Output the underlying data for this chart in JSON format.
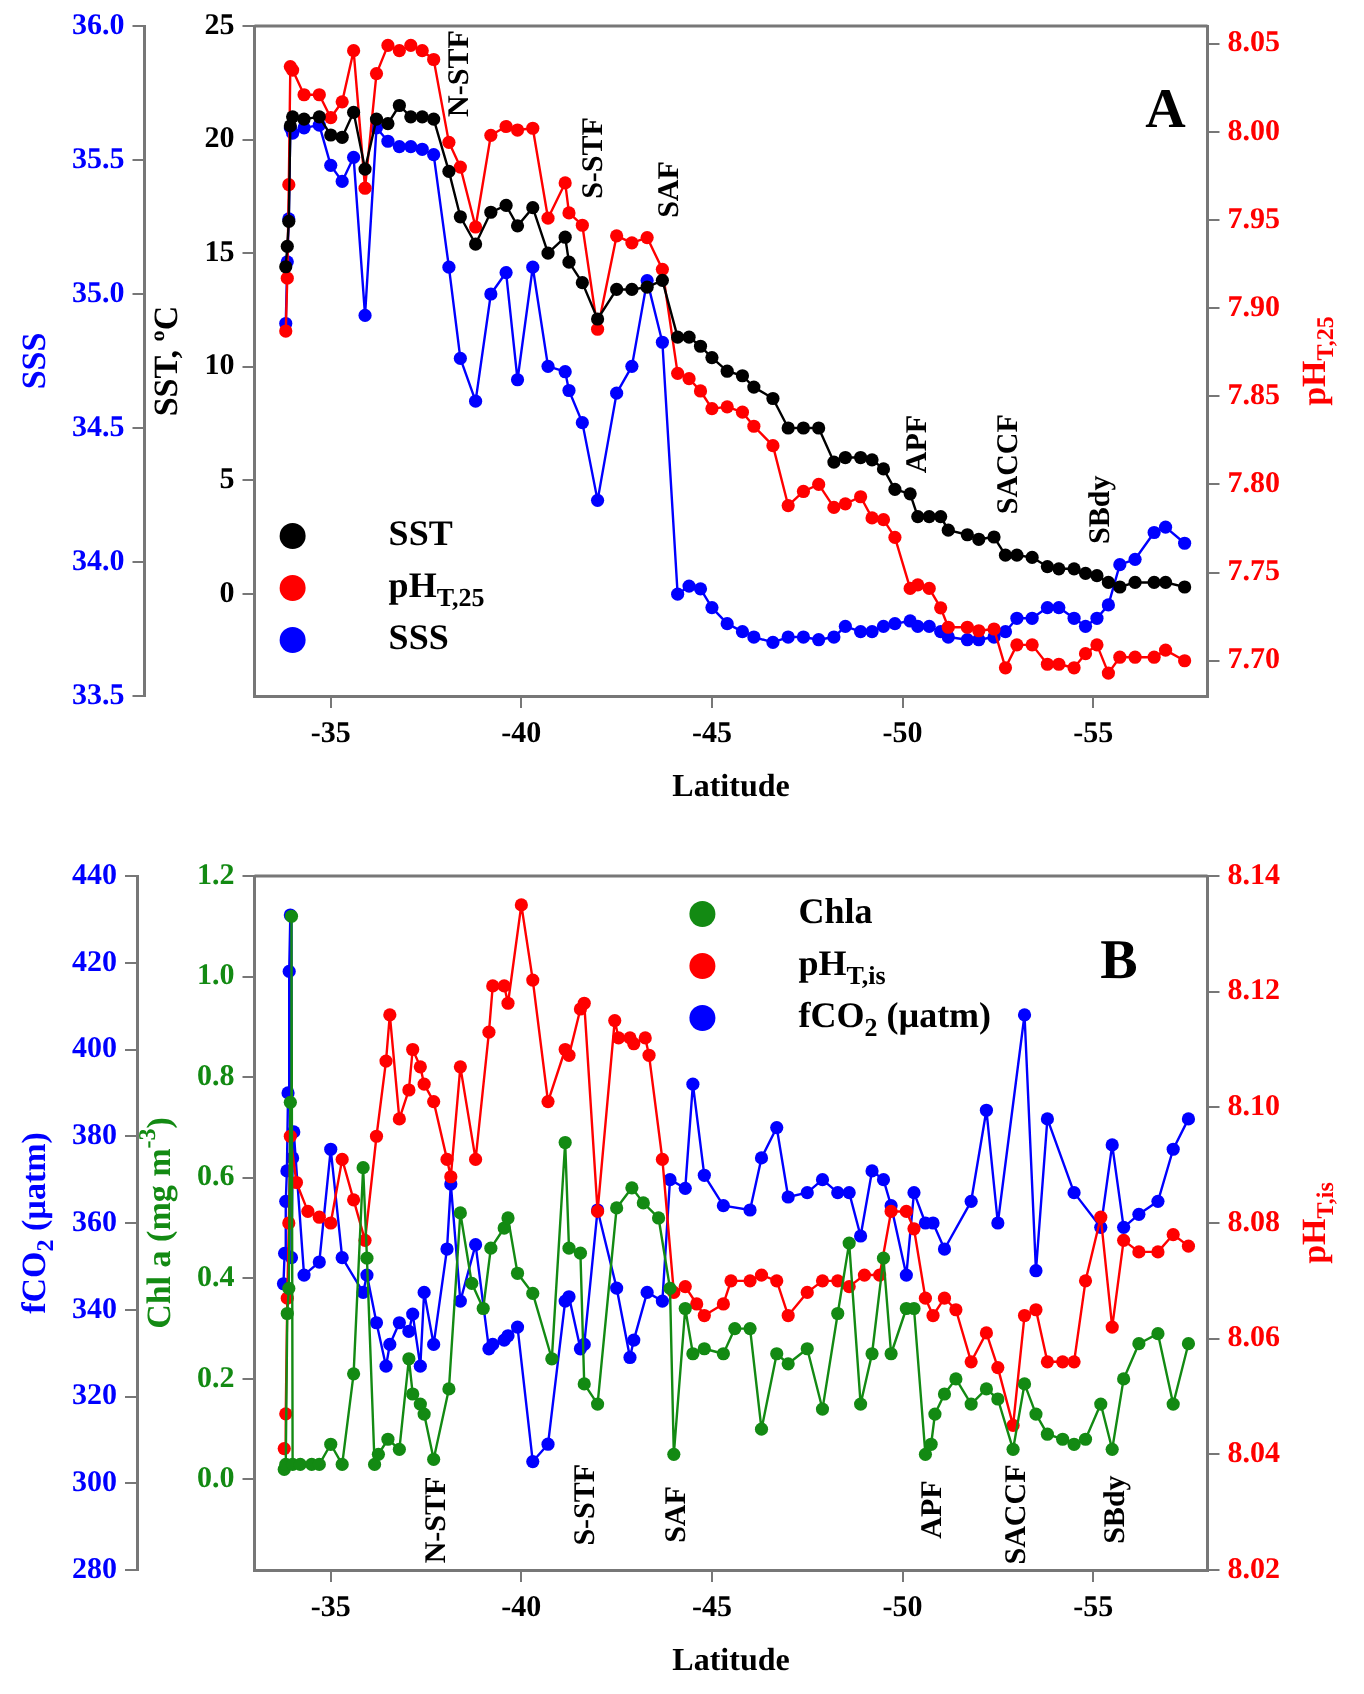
{
  "chart_data": [
    {
      "type": "line",
      "xlabel": "Latitude",
      "ylabel": "SST, ºC",
      "y2label": "pH$_{T,25}$",
      "y3label": "SSS",
      "xlim": [
        -33,
        -58
      ],
      "xticks": [
        -35,
        -40,
        -45,
        -50,
        -55
      ],
      "ylim": [
        -4.5,
        25
      ],
      "yticks": [
        0,
        5,
        10,
        15,
        20,
        25
      ],
      "y2lim": [
        7.68,
        8.06
      ],
      "y2ticks": [
        {
          "value": 7.7,
          "label": "7.70"
        },
        {
          "value": 7.75,
          "label": "7.75"
        },
        {
          "value": 7.8,
          "label": "7.80"
        },
        {
          "value": 7.85,
          "label": "7.85"
        },
        {
          "value": 7.9,
          "label": "7.90"
        },
        {
          "value": 7.95,
          "label": "7.95"
        },
        {
          "value": 8.0,
          "label": "8.00"
        },
        {
          "value": 8.05,
          "label": "8.05"
        }
      ],
      "y3lim": [
        33.5,
        36.0
      ],
      "y3ticks": [
        {
          "value": 33.5,
          "label": "33.5"
        },
        {
          "value": 34.0,
          "label": "34.0"
        },
        {
          "value": 34.5,
          "label": "34.5"
        },
        {
          "value": 35.0,
          "label": "35.0"
        },
        {
          "value": 35.5,
          "label": "35.5"
        },
        {
          "value": 36.0,
          "label": "36.0"
        }
      ],
      "marker": "circle",
      "legend": "bottom left",
      "annotations": [
        "A",
        "N-STF",
        "S-STF",
        "SAF",
        "APF",
        "SACCF",
        "SBdy"
      ],
      "series": [
        {
          "name": "SST",
          "color": "#000000",
          "x": [
            -33.82,
            -33.86,
            -33.9,
            -33.94,
            -34.0,
            -34.3,
            -34.7,
            -35.0,
            -35.3,
            -35.6,
            -35.9,
            -36.2,
            -36.5,
            -36.8,
            -37.1,
            -37.4,
            -37.7,
            -38.1,
            -38.4,
            -38.8,
            -39.2,
            -39.6,
            -39.9,
            -40.3,
            -40.7,
            -41.15,
            -41.25,
            -41.6,
            -42.0,
            -42.5,
            -42.9,
            -43.3,
            -43.7,
            -44.1,
            -44.4,
            -44.7,
            -45.0,
            -45.4,
            -45.8,
            -46.1,
            -46.6,
            -47.0,
            -47.4,
            -47.8,
            -48.2,
            -48.5,
            -48.9,
            -49.2,
            -49.5,
            -49.8,
            -50.2,
            -50.4,
            -50.7,
            -51.0,
            -51.2,
            -51.7,
            -52.0,
            -52.4,
            -52.7,
            -53.0,
            -53.4,
            -53.8,
            -54.1,
            -54.5,
            -54.8,
            -55.1,
            -55.4,
            -55.7,
            -56.1,
            -56.6,
            -56.9,
            -57.4
          ],
          "values": [
            14.4,
            15.3,
            16.4,
            20.6,
            21.0,
            20.9,
            21.0,
            20.2,
            20.1,
            21.2,
            18.7,
            20.9,
            20.7,
            21.5,
            21.0,
            21.0,
            20.9,
            18.6,
            16.6,
            15.4,
            16.8,
            17.1,
            16.2,
            17.0,
            15.0,
            15.7,
            14.6,
            13.7,
            12.1,
            13.4,
            13.4,
            13.5,
            13.8,
            11.3,
            11.3,
            10.9,
            10.4,
            9.8,
            9.6,
            9.1,
            8.6,
            7.3,
            7.3,
            7.3,
            5.8,
            6.0,
            6.0,
            5.9,
            5.5,
            4.6,
            4.4,
            3.4,
            3.4,
            3.4,
            2.8,
            2.6,
            2.4,
            2.5,
            1.7,
            1.7,
            1.6,
            1.2,
            1.1,
            1.1,
            0.9,
            0.8,
            0.5,
            0.3,
            0.5,
            0.5,
            0.5,
            0.3
          ]
        },
        {
          "name": "pH$_{T,25}$",
          "color": "#ff0000",
          "axis": "y2",
          "x": [
            -33.82,
            -33.86,
            -33.9,
            -33.94,
            -34.0,
            -34.3,
            -34.7,
            -35.0,
            -35.3,
            -35.6,
            -35.9,
            -36.2,
            -36.5,
            -36.8,
            -37.1,
            -37.4,
            -37.7,
            -38.1,
            -38.4,
            -38.8,
            -39.2,
            -39.6,
            -39.9,
            -40.3,
            -40.7,
            -41.15,
            -41.25,
            -41.6,
            -42.0,
            -42.5,
            -42.9,
            -43.3,
            -43.7,
            -44.1,
            -44.4,
            -44.7,
            -45.0,
            -45.4,
            -45.8,
            -46.1,
            -46.6,
            -47.0,
            -47.4,
            -47.8,
            -48.2,
            -48.5,
            -48.9,
            -49.2,
            -49.5,
            -49.8,
            -50.2,
            -50.4,
            -50.7,
            -51.0,
            -51.2,
            -51.7,
            -52.0,
            -52.4,
            -52.7,
            -53.0,
            -53.4,
            -53.8,
            -54.1,
            -54.5,
            -54.8,
            -55.1,
            -55.4,
            -55.7,
            -56.1,
            -56.6,
            -56.9,
            -57.4
          ],
          "values": [
            7.887,
            7.917,
            7.97,
            8.037,
            8.035,
            8.021,
            8.021,
            8.008,
            8.017,
            8.046,
            7.968,
            8.033,
            8.049,
            8.046,
            8.049,
            8.046,
            8.041,
            7.994,
            7.98,
            7.946,
            7.998,
            8.003,
            8.001,
            8.002,
            7.951,
            7.971,
            7.954,
            7.947,
            7.888,
            7.941,
            7.937,
            7.94,
            7.922,
            7.863,
            7.86,
            7.853,
            7.843,
            7.844,
            7.841,
            7.833,
            7.822,
            7.788,
            7.796,
            7.8,
            7.787,
            7.789,
            7.793,
            7.781,
            7.78,
            7.77,
            7.741,
            7.743,
            7.741,
            7.73,
            7.719,
            7.719,
            7.717,
            7.718,
            7.696,
            7.709,
            7.709,
            7.698,
            7.698,
            7.696,
            7.704,
            7.709,
            7.693,
            7.702,
            7.702,
            7.702,
            7.706,
            7.7
          ]
        },
        {
          "name": "SSS",
          "color": "#0000ff",
          "axis": "y3",
          "x": [
            -33.82,
            -33.86,
            -33.9,
            -33.94,
            -34.0,
            -34.3,
            -34.7,
            -35.0,
            -35.3,
            -35.6,
            -35.9,
            -36.2,
            -36.5,
            -36.8,
            -37.1,
            -37.4,
            -37.7,
            -38.1,
            -38.4,
            -38.8,
            -39.2,
            -39.6,
            -39.9,
            -40.3,
            -40.7,
            -41.15,
            -41.25,
            -41.6,
            -42.0,
            -42.5,
            -42.9,
            -43.3,
            -43.7,
            -44.1,
            -44.4,
            -44.7,
            -45.0,
            -45.4,
            -45.8,
            -46.1,
            -46.6,
            -47.0,
            -47.4,
            -47.8,
            -48.2,
            -48.5,
            -48.9,
            -49.2,
            -49.5,
            -49.8,
            -50.2,
            -50.4,
            -50.7,
            -51.0,
            -51.2,
            -51.7,
            -52.0,
            -52.4,
            -52.7,
            -53.0,
            -53.4,
            -53.8,
            -54.1,
            -54.5,
            -54.8,
            -55.1,
            -55.4,
            -55.7,
            -56.1,
            -56.6,
            -56.9,
            -57.4
          ],
          "values": [
            34.89,
            35.12,
            35.28,
            35.62,
            35.6,
            35.62,
            35.63,
            35.48,
            35.42,
            35.51,
            34.92,
            35.62,
            35.57,
            35.55,
            35.55,
            35.54,
            35.52,
            35.1,
            34.76,
            34.6,
            35.0,
            35.08,
            34.68,
            35.1,
            34.73,
            34.71,
            34.64,
            34.52,
            34.23,
            34.63,
            34.73,
            35.05,
            34.82,
            33.88,
            33.91,
            33.9,
            33.83,
            33.77,
            33.74,
            33.72,
            33.7,
            33.72,
            33.72,
            33.71,
            33.72,
            33.76,
            33.74,
            33.74,
            33.76,
            33.77,
            33.78,
            33.76,
            33.76,
            33.74,
            33.72,
            33.71,
            33.71,
            33.72,
            33.74,
            33.79,
            33.79,
            33.83,
            33.83,
            33.79,
            33.76,
            33.79,
            33.84,
            33.99,
            34.01,
            34.11,
            34.13,
            34.07
          ]
        }
      ]
    },
    {
      "type": "line",
      "xlabel": "Latitude",
      "ylabel": "Chl a (mg m$^{-3}$)",
      "y2label": "pH$_{T,is}$",
      "y3label": "fCO$_{2}$ (µatm)",
      "xlim": [
        -33,
        -58
      ],
      "xticks": [
        -35,
        -40,
        -45,
        -50,
        -55
      ],
      "ylim": [
        -0.18,
        1.2
      ],
      "yticks": [
        {
          "value": 0,
          "label": "0.0"
        },
        {
          "value": 0.2,
          "label": "0.2"
        },
        {
          "value": 0.4,
          "label": "0.4"
        },
        {
          "value": 0.6,
          "label": "0.6"
        },
        {
          "value": 0.8,
          "label": "0.8"
        },
        {
          "value": 1,
          "label": "1.0"
        },
        {
          "value": 1.2,
          "label": "1.2"
        }
      ],
      "y2lim": [
        8.02,
        8.14
      ],
      "y2ticks": [
        {
          "value": 8.02,
          "label": "8.02"
        },
        {
          "value": 8.04,
          "label": "8.04"
        },
        {
          "value": 8.06,
          "label": "8.06"
        },
        {
          "value": 8.08,
          "label": "8.08"
        },
        {
          "value": 8.1,
          "label": "8.10"
        },
        {
          "value": 8.12,
          "label": "8.12"
        },
        {
          "value": 8.14,
          "label": "8.14"
        }
      ],
      "y3lim": [
        280,
        440
      ],
      "y3ticks": [
        280,
        300,
        320,
        340,
        360,
        380,
        400,
        420,
        440
      ],
      "marker": "circle",
      "legend": "top right",
      "annotations": [
        "B",
        "N-STF",
        "S-STF",
        "SAF",
        "APF",
        "SACCF",
        "SBdy"
      ],
      "series": [
        {
          "name": "Chla",
          "color": "#138a13",
          "x": [
            -33.78,
            -33.82,
            -33.86,
            -33.9,
            -33.94,
            -33.97,
            -34.0,
            -34.2,
            -34.5,
            -34.7,
            -35.0,
            -35.3,
            -35.6,
            -35.85,
            -35.95,
            -36.15,
            -36.25,
            -36.5,
            -36.8,
            -37.05,
            -37.15,
            -37.35,
            -37.45,
            -37.7,
            -38.1,
            -38.4,
            -38.7,
            -39.0,
            -39.2,
            -39.55,
            -39.65,
            -39.9,
            -40.3,
            -40.8,
            -41.15,
            -41.25,
            -41.55,
            -41.65,
            -42.0,
            -42.5,
            -42.9,
            -43.2,
            -43.6,
            -43.9,
            -44.0,
            -44.3,
            -44.5,
            -44.8,
            -45.3,
            -45.6,
            -46.0,
            -46.3,
            -46.7,
            -47.0,
            -47.5,
            -47.9,
            -48.3,
            -48.6,
            -48.9,
            -49.2,
            -49.5,
            -49.7,
            -50.1,
            -50.3,
            -50.6,
            -50.75,
            -50.85,
            -51.1,
            -51.4,
            -51.8,
            -52.2,
            -52.5,
            -52.9,
            -53.2,
            -53.5,
            -53.8,
            -54.2,
            -54.5,
            -54.8,
            -55.2,
            -55.5,
            -55.8,
            -56.2,
            -56.7,
            -57.1,
            -57.5
          ],
          "values": [
            0.02,
            0.03,
            0.33,
            0.38,
            0.75,
            1.12,
            0.03,
            0.03,
            0.03,
            0.03,
            0.07,
            0.03,
            0.21,
            0.62,
            0.44,
            0.03,
            0.05,
            0.08,
            0.06,
            0.24,
            0.17,
            0.15,
            0.13,
            0.04,
            0.18,
            0.53,
            0.39,
            0.34,
            0.46,
            0.5,
            0.52,
            0.41,
            0.37,
            0.24,
            0.67,
            0.46,
            0.45,
            0.19,
            0.15,
            0.54,
            0.58,
            0.55,
            0.52,
            0.38,
            0.05,
            0.34,
            0.25,
            0.26,
            0.25,
            0.3,
            0.3,
            0.1,
            0.25,
            0.23,
            0.26,
            0.14,
            0.33,
            0.47,
            0.15,
            0.25,
            0.44,
            0.25,
            0.34,
            0.34,
            0.05,
            0.07,
            0.13,
            0.17,
            0.2,
            0.15,
            0.18,
            0.16,
            0.06,
            0.19,
            0.13,
            0.09,
            0.08,
            0.07,
            0.08,
            0.15,
            0.06,
            0.2,
            0.27,
            0.29,
            0.15,
            0.27
          ]
        },
        {
          "name": "pH$_{T,is}$",
          "color": "#ff0000",
          "axis": "y2",
          "x": [
            -33.78,
            -33.82,
            -33.86,
            -33.9,
            -33.94,
            -34.1,
            -34.4,
            -34.7,
            -35.0,
            -35.3,
            -35.6,
            -35.9,
            -36.2,
            -36.45,
            -36.55,
            -36.8,
            -37.05,
            -37.15,
            -37.35,
            -37.45,
            -37.7,
            -38.05,
            -38.15,
            -38.4,
            -38.8,
            -39.15,
            -39.25,
            -39.55,
            -39.65,
            -40.0,
            -40.3,
            -40.7,
            -41.15,
            -41.25,
            -41.55,
            -41.65,
            -42.0,
            -42.45,
            -42.55,
            -42.85,
            -42.95,
            -43.25,
            -43.35,
            -43.7,
            -44.0,
            -44.3,
            -44.6,
            -44.8,
            -45.3,
            -45.5,
            -46.0,
            -46.3,
            -46.7,
            -47.0,
            -47.5,
            -47.9,
            -48.3,
            -48.6,
            -49.0,
            -49.4,
            -49.7,
            -50.1,
            -50.3,
            -50.6,
            -50.8,
            -51.1,
            -51.4,
            -51.8,
            -52.2,
            -52.5,
            -52.9,
            -53.2,
            -53.5,
            -53.8,
            -54.2,
            -54.5,
            -54.8,
            -55.2,
            -55.5,
            -55.8,
            -56.2,
            -56.7,
            -57.1,
            -57.5
          ],
          "values": [
            8.041,
            8.047,
            8.067,
            8.08,
            8.095,
            8.087,
            8.082,
            8.081,
            8.08,
            8.091,
            8.084,
            8.077,
            8.095,
            8.108,
            8.116,
            8.098,
            8.103,
            8.11,
            8.107,
            8.104,
            8.101,
            8.091,
            8.088,
            8.107,
            8.091,
            8.113,
            8.121,
            8.121,
            8.118,
            8.135,
            8.122,
            8.101,
            8.11,
            8.109,
            8.117,
            8.118,
            8.082,
            8.115,
            8.112,
            8.112,
            8.111,
            8.112,
            8.109,
            8.091,
            8.068,
            8.069,
            8.066,
            8.064,
            8.066,
            8.07,
            8.07,
            8.071,
            8.07,
            8.064,
            8.068,
            8.07,
            8.07,
            8.069,
            8.071,
            8.071,
            8.082,
            8.082,
            8.079,
            8.067,
            8.064,
            8.067,
            8.065,
            8.056,
            8.061,
            8.055,
            8.045,
            8.064,
            8.065,
            8.056,
            8.056,
            8.056,
            8.07,
            8.081,
            8.062,
            8.077,
            8.075,
            8.075,
            8.078,
            8.076
          ]
        },
        {
          "name": "fCO$_{2}$ (µatm)",
          "color": "#0000ff",
          "axis": "y3",
          "x": [
            -33.76,
            -33.79,
            -33.82,
            -33.85,
            -33.88,
            -33.91,
            -33.94,
            -33.97,
            -34.0,
            -34.03,
            -34.3,
            -34.7,
            -35.0,
            -35.3,
            -35.85,
            -35.95,
            -36.2,
            -36.45,
            -36.55,
            -36.8,
            -37.05,
            -37.15,
            -37.35,
            -37.45,
            -37.7,
            -38.05,
            -38.15,
            -38.4,
            -38.8,
            -39.15,
            -39.25,
            -39.55,
            -39.65,
            -39.9,
            -40.3,
            -40.7,
            -41.15,
            -41.25,
            -41.55,
            -41.65,
            -42.0,
            -42.5,
            -42.85,
            -42.95,
            -43.3,
            -43.7,
            -43.9,
            -44.3,
            -44.5,
            -44.8,
            -45.3,
            -46.0,
            -46.3,
            -46.7,
            -47.0,
            -47.5,
            -47.9,
            -48.3,
            -48.6,
            -48.9,
            -49.2,
            -49.5,
            -49.7,
            -50.1,
            -50.3,
            -50.6,
            -50.8,
            -51.1,
            -51.8,
            -52.2,
            -52.5,
            -53.2,
            -53.5,
            -53.8,
            -54.5,
            -55.2,
            -55.5,
            -55.8,
            -56.2,
            -56.7,
            -57.1,
            -57.5
          ],
          "values": [
            346,
            353,
            365,
            372,
            390,
            418,
            431,
            352,
            375,
            381,
            348,
            351,
            377,
            352,
            344,
            348,
            337,
            327,
            332,
            337,
            335,
            339,
            327,
            344,
            332,
            354,
            369,
            342,
            355,
            331,
            332,
            333,
            334,
            336,
            305,
            309,
            342,
            343,
            331,
            332,
            363,
            345,
            329,
            333,
            344,
            342,
            370,
            368,
            392,
            371,
            364,
            363,
            375,
            382,
            366,
            367,
            370,
            367,
            367,
            357,
            372,
            370,
            364,
            348,
            367,
            360,
            360,
            354,
            365,
            386,
            360,
            408,
            349,
            384,
            367,
            359,
            378,
            359,
            362,
            365,
            377,
            384
          ]
        }
      ]
    }
  ]
}
